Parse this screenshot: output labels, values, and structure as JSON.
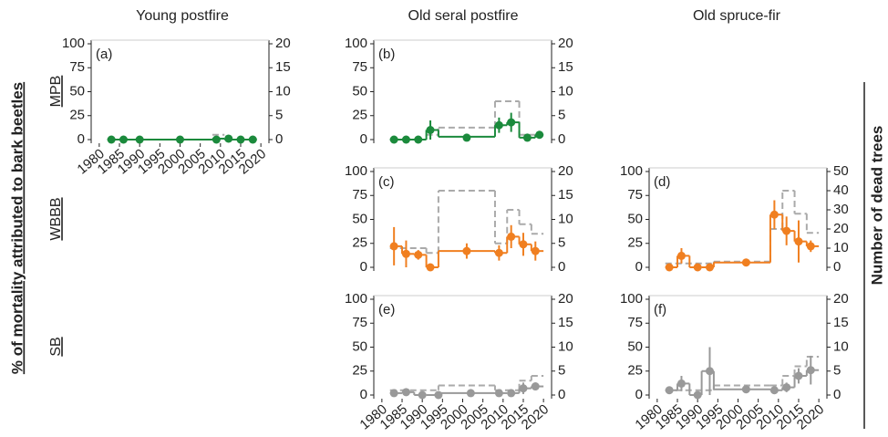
{
  "column_titles": [
    "Young postfire",
    "Old seral postfire",
    "Old spruce-fir"
  ],
  "row_labels": [
    "MPB",
    "WBBB",
    "SB"
  ],
  "y_label": "% of mortality attributed to bark beetles",
  "y2_label": "Number of dead trees",
  "chart_data": [
    {
      "type": "step",
      "label": "(a)",
      "color": "#1b8a3c",
      "xlim": [
        1978,
        2022
      ],
      "xticks": [
        1980,
        1985,
        1990,
        1995,
        2000,
        2005,
        2010,
        2015,
        2020
      ],
      "ylim": [
        0,
        100
      ],
      "yticks": [
        0,
        25,
        50,
        75,
        100
      ],
      "y2lim": [
        0,
        20
      ],
      "y2ticks": [
        0,
        5,
        10,
        15,
        20
      ],
      "points": {
        "x": [
          1983,
          1986,
          1990,
          2000,
          2009,
          2012,
          2015,
          2018
        ],
        "values": [
          0,
          0,
          0,
          0,
          0,
          1,
          0,
          0
        ],
        "errors": [
          1,
          1,
          1,
          1,
          1,
          1,
          1,
          1
        ]
      },
      "steps": {
        "x": [
          1982,
          2008,
          2011,
          2019
        ],
        "values": [
          0,
          1,
          0
        ]
      },
      "dead_trees": {
        "axis": "y2",
        "color": "#aaaaaa",
        "x": [
          2008,
          2011
        ],
        "values": [
          1
        ]
      }
    },
    {
      "type": "step",
      "label": "(b)",
      "color": "#1b8a3c",
      "xlim": [
        1978,
        2022
      ],
      "ylim": [
        0,
        100
      ],
      "yticks": [
        0,
        25,
        50,
        75,
        100
      ],
      "y2lim": [
        0,
        20
      ],
      "y2ticks": [
        0,
        5,
        10,
        15,
        20
      ],
      "points": {
        "x": [
          1983,
          1986,
          1989,
          1992,
          2001,
          2009,
          2012,
          2016,
          2019
        ],
        "values": [
          0,
          0,
          0,
          10,
          2,
          15,
          18,
          2,
          5
        ],
        "errors": [
          3,
          3,
          3,
          10,
          3,
          8,
          10,
          4,
          4
        ]
      },
      "steps": {
        "x": [
          1982,
          1991,
          1994,
          2008,
          2011,
          2014,
          2018,
          2020
        ],
        "values": [
          0,
          10,
          3,
          15,
          18,
          2,
          5
        ]
      },
      "dead_trees": {
        "axis": "y2",
        "color": "#aaaaaa",
        "x": [
          1991,
          1994,
          2008,
          2014,
          2018,
          2020
        ],
        "values": [
          1,
          2.5,
          8,
          1,
          1
        ]
      }
    },
    {
      "type": "step",
      "label": "(c)",
      "color": "#f07f20",
      "xlim": [
        1978,
        2022
      ],
      "ylim": [
        0,
        100
      ],
      "yticks": [
        0,
        25,
        50,
        75,
        100
      ],
      "y2lim": [
        0,
        20
      ],
      "y2ticks": [
        0,
        5,
        10,
        15,
        20
      ],
      "points": {
        "x": [
          1983,
          1986,
          1989,
          1992,
          2001,
          2009,
          2012,
          2015,
          2018
        ],
        "values": [
          22,
          14,
          13,
          0,
          17,
          15,
          32,
          24,
          17
        ],
        "errors": [
          20,
          14,
          5,
          3,
          8,
          8,
          12,
          12,
          10
        ]
      },
      "steps": {
        "x": [
          1982,
          1985,
          1988,
          1991,
          1994,
          2008,
          2011,
          2014,
          2017,
          2020
        ],
        "values": [
          22,
          14,
          13,
          0,
          17,
          15,
          32,
          24,
          17
        ]
      },
      "dead_trees": {
        "axis": "y2",
        "color": "#aaaaaa",
        "x": [
          1982,
          1991,
          1994,
          2008,
          2011,
          2014,
          2017,
          2020
        ],
        "values": [
          4,
          3,
          16,
          5,
          12,
          9,
          7
        ]
      }
    },
    {
      "type": "step",
      "label": "(d)",
      "color": "#f07f20",
      "xlim": [
        1978,
        2022
      ],
      "ylim": [
        0,
        100
      ],
      "yticks": [
        0,
        25,
        50,
        75,
        100
      ],
      "y2lim": [
        0,
        50
      ],
      "y2ticks": [
        0,
        10,
        20,
        30,
        40,
        50
      ],
      "points": {
        "x": [
          1983,
          1986,
          1990,
          1993,
          2002,
          2009,
          2012,
          2015,
          2018
        ],
        "values": [
          0,
          12,
          0,
          0,
          5,
          55,
          38,
          27,
          22
        ],
        "errors": [
          2,
          8,
          2,
          2,
          2,
          15,
          15,
          22,
          6
        ]
      },
      "steps": {
        "x": [
          1982,
          1985,
          1988,
          1991,
          1994,
          2008,
          2011,
          2014,
          2017,
          2020
        ],
        "values": [
          0,
          12,
          0,
          0,
          5,
          55,
          38,
          27,
          22
        ]
      },
      "dead_trees": {
        "axis": "y2",
        "color": "#aaaaaa",
        "x": [
          1982,
          1994,
          2008,
          2011,
          2014,
          2017,
          2020
        ],
        "values": [
          2,
          3,
          20,
          40,
          28,
          18
        ]
      }
    },
    {
      "type": "step",
      "label": "(e)",
      "color": "#999999",
      "xlim": [
        1978,
        2022
      ],
      "xticks": [
        1980,
        1985,
        1990,
        1995,
        2000,
        2005,
        2010,
        2015,
        2020
      ],
      "ylim": [
        0,
        100
      ],
      "yticks": [
        0,
        25,
        50,
        75,
        100
      ],
      "y2lim": [
        0,
        20
      ],
      "y2ticks": [
        0,
        5,
        10,
        15,
        20
      ],
      "points": {
        "x": [
          1983,
          1986,
          1990,
          1994,
          2002,
          2009,
          2012,
          2015,
          2018
        ],
        "values": [
          2,
          3,
          0,
          0,
          2,
          2,
          2,
          7,
          9
        ],
        "errors": [
          2,
          2,
          1,
          1,
          1,
          2,
          2,
          6,
          4
        ]
      },
      "steps": {
        "x": [
          1982,
          1985,
          1988,
          1991,
          1994,
          2008,
          2011,
          2014,
          2017,
          2020
        ],
        "values": [
          2,
          3,
          0,
          0,
          2,
          2,
          2,
          7,
          9
        ]
      },
      "dead_trees": {
        "axis": "y2",
        "color": "#aaaaaa",
        "x": [
          1982,
          1994,
          2008,
          2014,
          2017,
          2020
        ],
        "values": [
          1,
          2,
          1,
          3,
          4
        ]
      }
    },
    {
      "type": "step",
      "label": "(f)",
      "color": "#999999",
      "xlim": [
        1978,
        2022
      ],
      "xticks": [
        1980,
        1985,
        1990,
        1995,
        2000,
        2005,
        2010,
        2015,
        2020
      ],
      "ylim": [
        0,
        100
      ],
      "yticks": [
        0,
        25,
        50,
        75,
        100
      ],
      "y2lim": [
        0,
        20
      ],
      "y2ticks": [
        0,
        5,
        10,
        15,
        20
      ],
      "points": {
        "x": [
          1983,
          1986,
          1990,
          1993,
          2002,
          2009,
          2012,
          2015,
          2018
        ],
        "values": [
          5,
          12,
          0,
          25,
          6,
          5,
          8,
          20,
          26
        ],
        "errors": [
          3,
          8,
          2,
          25,
          3,
          4,
          5,
          8,
          15
        ]
      },
      "steps": {
        "x": [
          1982,
          1985,
          1988,
          1991,
          1994,
          2008,
          2011,
          2014,
          2017,
          2020
        ],
        "values": [
          5,
          12,
          0,
          25,
          6,
          5,
          8,
          20,
          26
        ]
      },
      "dead_trees": {
        "axis": "y2",
        "color": "#aaaaaa",
        "x": [
          1982,
          1994,
          2008,
          2011,
          2014,
          2017,
          2020
        ],
        "values": [
          1,
          2,
          2,
          4,
          6,
          8
        ]
      }
    }
  ]
}
